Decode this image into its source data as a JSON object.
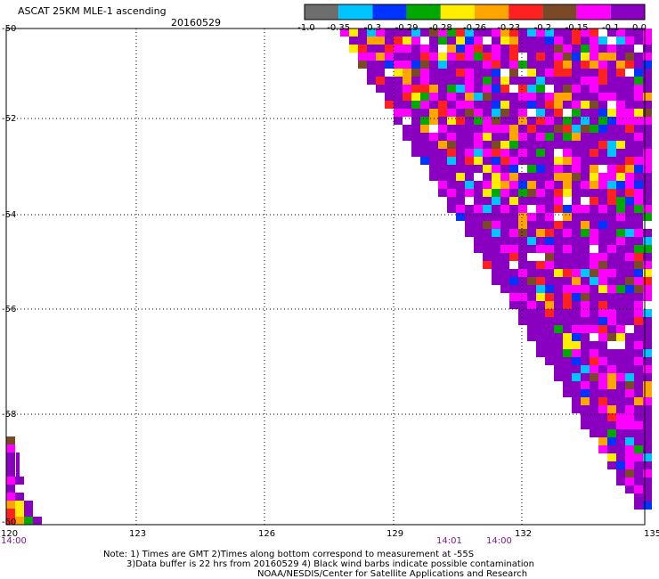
{
  "header": {
    "title": "ASCAT 25KM MLE-1 ascending",
    "date": "20160529"
  },
  "colorbar": {
    "labels": [
      "-1.0",
      "-0.35",
      "-0.3",
      "-0.29",
      "-0.28",
      "-0.26",
      "-0.23",
      "-0.2",
      "-0.15",
      "-0.1",
      "0.0"
    ],
    "colors": [
      "#6e6e6e",
      "#00c4ff",
      "#0033ff",
      "#00a800",
      "#ffee00",
      "#ffa500",
      "#ff2020",
      "#7a4a28",
      "#ff00ff",
      "#8a00c0"
    ]
  },
  "map": {
    "lat_labels": [
      "-50",
      "-52",
      "-54",
      "-56",
      "-58",
      "-60"
    ],
    "lon_labels": [
      "120",
      "123",
      "126",
      "129",
      "132",
      "135"
    ],
    "time_labels": [
      "14:00",
      "14:01",
      "14:00"
    ]
  },
  "notes": {
    "line1": "Note: 1) Times are GMT 2)Times along bottom correspond to measurement at -55S",
    "line2": "3)Data buffer is 22 hrs from 20160529 4) Black wind barbs indicate possible contamination",
    "line3": "NOAA/NESDIS/Center for Satellite Applications and Research"
  }
}
